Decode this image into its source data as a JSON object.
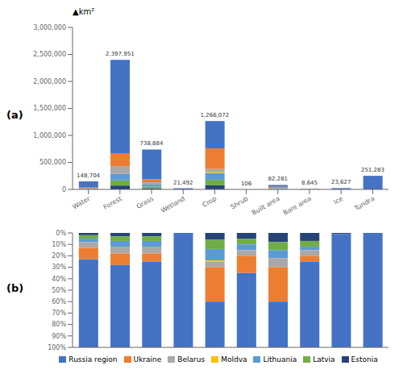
{
  "chart_data": [
    {
      "type": "bar",
      "title": "(a)",
      "ylabel": "▲km²",
      "stacked": true,
      "grid": false,
      "categories": [
        "Water",
        "Forest",
        "Grass",
        "Wetland",
        "Crop",
        "Shrub",
        "Built area",
        "Bare area",
        "Ice",
        "Tundra"
      ],
      "series": [
        {
          "name": "Estonia",
          "color": "#264478",
          "values": [
            2974.08,
            71938.53,
            22166.52,
            0,
            75964.32,
            5.3,
            6582.48,
            605.15,
            236.27,
            0
          ]
        },
        {
          "name": "Latvia",
          "color": "#70AD47",
          "values": [
            4461.12,
            95918.04,
            29555.36,
            0,
            101285.76,
            5.3,
            5759.67,
            432.25,
            0,
            0
          ]
        },
        {
          "name": "Lithuania",
          "color": "#5B9BD5",
          "values": [
            4461.12,
            119897.55,
            36944.2,
            0,
            126607.2,
            5.3,
            5759.67,
            259.35,
            0,
            0
          ]
        },
        {
          "name": "Moldva",
          "color": "#FFC000",
          "values": [
            0,
            0,
            0,
            0,
            12660.72,
            0,
            0,
            0,
            0,
            0
          ]
        },
        {
          "name": "Belarus",
          "color": "#A9A9A9",
          "values": [
            7435.2,
            143877.06,
            44333.04,
            0,
            63303.6,
            5.3,
            6582.48,
            432.25,
            0,
            0
          ]
        },
        {
          "name": "Ukraine",
          "color": "#ED7D31",
          "values": [
            14870.4,
            239795.1,
            51721.88,
            0,
            379821.6,
            15.9,
            24684.3,
            432.25,
            0,
            0
          ]
        },
        {
          "name": "Russia region",
          "color": "#4472C4",
          "values": [
            114502.08,
            1726524.72,
            554163,
            21492,
            506428.8,
            68.9,
            32912.4,
            6483.75,
            23390.73,
            251283
          ]
        }
      ],
      "ylim": [
        0,
        3000000
      ],
      "yticks": [
        0,
        {
          "value": 500000,
          "label": "500,000"
        },
        {
          "value": 1000000,
          "label": "1,000,000"
        },
        {
          "value": 1500000,
          "label": "1,500,000"
        },
        {
          "value": 2000000,
          "label": "2,000,000"
        },
        {
          "value": 2500000,
          "label": "2,500,000"
        },
        {
          "value": 3000000,
          "label": "3,000,000"
        }
      ],
      "annotations": [
        {
          "text": "148,704",
          "x": "Water",
          "y": 148704
        },
        {
          "text": "2,397,951",
          "x": "Forest",
          "y": 2397951
        },
        {
          "text": "738,884",
          "x": "Grass",
          "y": 738884
        },
        {
          "text": "21,492",
          "x": "Wetland",
          "y": 21492
        },
        {
          "text": "1,266,072",
          "x": "Crop",
          "y": 1266072
        },
        {
          "text": "106",
          "x": "Shrub",
          "y": 106
        },
        {
          "text": "82,281",
          "x": "Built area",
          "y": 82281
        },
        {
          "text": "8,645",
          "x": "Bare area",
          "y": 8645
        },
        {
          "text": "23,627",
          "x": "Ice",
          "y": 23627
        },
        {
          "text": "251,283",
          "x": "Tundra",
          "y": 251283
        }
      ]
    },
    {
      "type": "bar",
      "title": "(b)",
      "stacked": true,
      "grid": false,
      "tick_labels": "y",
      "legend": "bottom",
      "categories": [
        "Water",
        "Forest",
        "Grass",
        "Wetland",
        "Crop",
        "Shrub",
        "Built area",
        "Bare area",
        "Ice",
        "Tundra"
      ],
      "series": [
        {
          "name": "Estonia",
          "color": "#264478",
          "values": [
            2,
            3,
            3,
            0,
            6,
            5,
            8,
            7,
            1,
            0
          ]
        },
        {
          "name": "Latvia",
          "color": "#70AD47",
          "values": [
            3,
            4,
            4,
            0,
            8,
            5,
            7,
            5,
            0,
            0
          ]
        },
        {
          "name": "Lithuania",
          "color": "#5B9BD5",
          "values": [
            3,
            5,
            5,
            0,
            10,
            5,
            7,
            3,
            0,
            0
          ]
        },
        {
          "name": "Moldva",
          "color": "#FFC000",
          "values": [
            0,
            0,
            0,
            0,
            1,
            0,
            0,
            0,
            0,
            0
          ]
        },
        {
          "name": "Belarus",
          "color": "#A9A9A9",
          "values": [
            5,
            6,
            6,
            0,
            5,
            5,
            8,
            5,
            0,
            0
          ]
        },
        {
          "name": "Ukraine",
          "color": "#ED7D31",
          "values": [
            10,
            10,
            7,
            0,
            30,
            15,
            30,
            5,
            0,
            0
          ]
        },
        {
          "name": "Russia region",
          "color": "#4472C4",
          "values": [
            77,
            72,
            75,
            100,
            40,
            65,
            40,
            75,
            99,
            100
          ]
        }
      ],
      "ylim": [
        100,
        0
      ],
      "yticks": [
        {
          "value": 0,
          "label": "0%"
        },
        {
          "value": 10,
          "label": "10%"
        },
        {
          "value": 20,
          "label": "20%"
        },
        {
          "value": 30,
          "label": "30%"
        },
        {
          "value": 40,
          "label": "40%"
        },
        {
          "value": 50,
          "label": "50%"
        },
        {
          "value": 60,
          "label": "60%"
        },
        {
          "value": 70,
          "label": "70%"
        },
        {
          "value": 80,
          "label": "80%"
        },
        {
          "value": 90,
          "label": "90%"
        },
        {
          "value": 100,
          "label": "100%"
        }
      ]
    }
  ]
}
